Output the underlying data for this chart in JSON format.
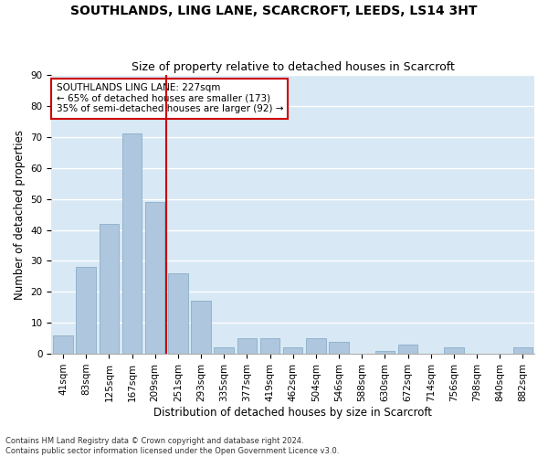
{
  "title1": "SOUTHLANDS, LING LANE, SCARCROFT, LEEDS, LS14 3HT",
  "title2": "Size of property relative to detached houses in Scarcroft",
  "xlabel": "Distribution of detached houses by size in Scarcroft",
  "ylabel": "Number of detached properties",
  "categories": [
    "41sqm",
    "83sqm",
    "125sqm",
    "167sqm",
    "209sqm",
    "251sqm",
    "293sqm",
    "335sqm",
    "377sqm",
    "419sqm",
    "462sqm",
    "504sqm",
    "546sqm",
    "588sqm",
    "630sqm",
    "672sqm",
    "714sqm",
    "756sqm",
    "798sqm",
    "840sqm",
    "882sqm"
  ],
  "values": [
    6,
    28,
    42,
    71,
    49,
    26,
    17,
    2,
    5,
    5,
    2,
    5,
    4,
    0,
    1,
    3,
    0,
    2,
    0,
    0,
    2
  ],
  "bar_color": "#aec6de",
  "bar_edge_color": "#8aafc8",
  "bg_color": "#d8e8f4",
  "grid_color": "#ffffff",
  "vline_x": 4.5,
  "vline_color": "#cc0000",
  "annotation_title": "SOUTHLANDS LING LANE: 227sqm",
  "annotation_line1": "← 65% of detached houses are smaller (173)",
  "annotation_line2": "35% of semi-detached houses are larger (92) →",
  "annotation_box_color": "#cc0000",
  "ylim": [
    0,
    90
  ],
  "yticks": [
    0,
    10,
    20,
    30,
    40,
    50,
    60,
    70,
    80,
    90
  ],
  "footer1": "Contains HM Land Registry data © Crown copyright and database right 2024.",
  "footer2": "Contains public sector information licensed under the Open Government Licence v3.0.",
  "title1_fontsize": 10,
  "title2_fontsize": 9,
  "axis_label_fontsize": 8.5,
  "tick_fontsize": 7.5,
  "annotation_fontsize": 7.5,
  "footer_fontsize": 6.0
}
